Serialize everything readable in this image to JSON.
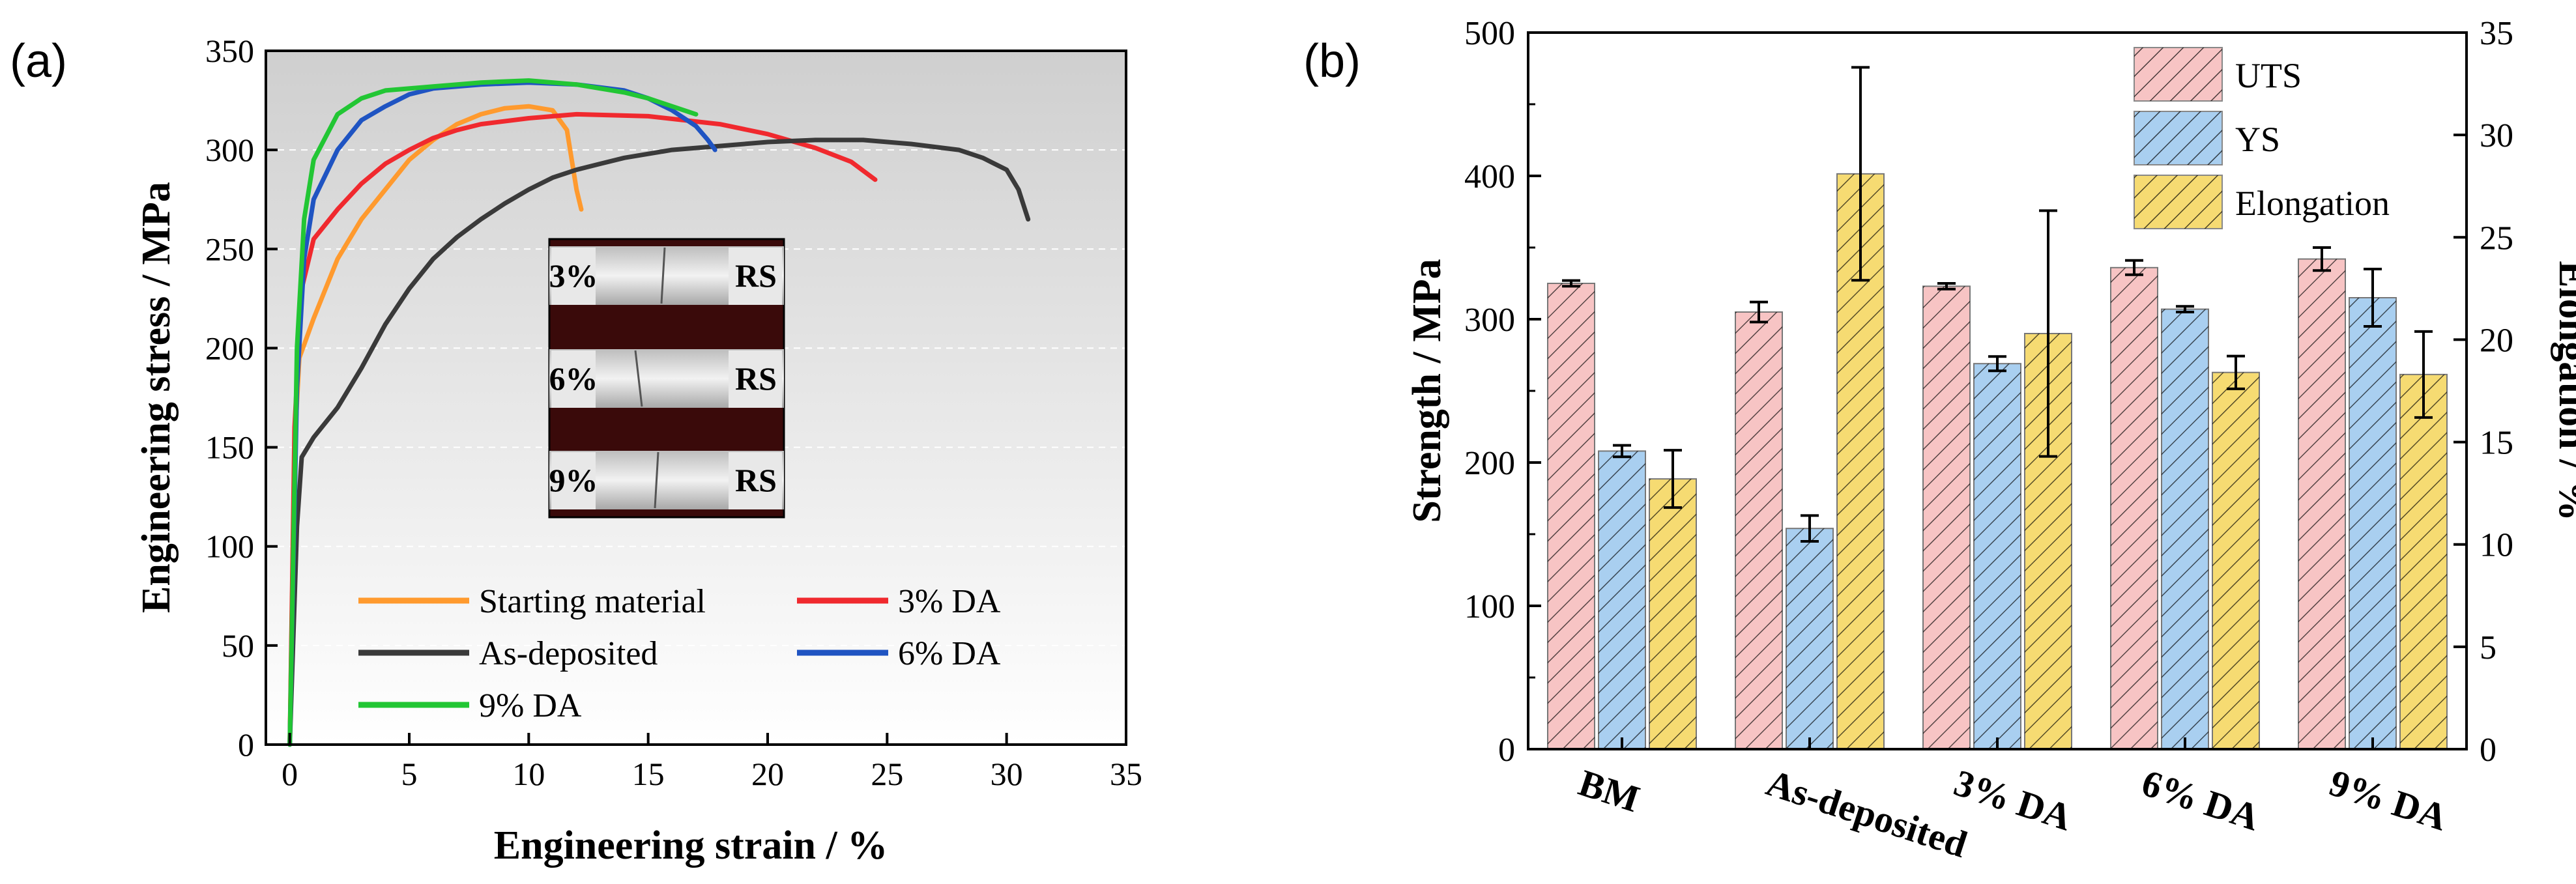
{
  "panel_labels": {
    "a": "(a)",
    "b": "(b)"
  },
  "colors": {
    "starting": "#FF9A2E",
    "da3": "#F0292E",
    "asdep": "#3A3A3A",
    "da6": "#1F54C2",
    "da9": "#22C634",
    "uts_fill": "#F7C4C4",
    "ys_fill": "#A9CFF0",
    "el_fill": "#F6DB72",
    "axis": "#000000"
  },
  "chart_data": [
    {
      "type": "line",
      "title": "",
      "xlabel": "Engineering strain / %",
      "ylabel": "Engineering stress / MPa",
      "xlim": [
        -1,
        35
      ],
      "ylim": [
        0,
        350
      ],
      "xticks": [
        "0",
        "5",
        "10",
        "15",
        "20",
        "25",
        "30",
        "35"
      ],
      "yticks": [
        "0",
        "50",
        "100",
        "150",
        "200",
        "250",
        "300",
        "350"
      ],
      "legend": [
        {
          "label": "Starting material",
          "key": "starting"
        },
        {
          "label": "3% DA",
          "key": "da3"
        },
        {
          "label": "As-deposited",
          "key": "asdep"
        },
        {
          "label": "6% DA",
          "key": "da6"
        },
        {
          "label": "9% DA",
          "key": "da9"
        }
      ],
      "series": [
        {
          "name": "Starting material",
          "key": "starting",
          "points": [
            [
              0,
              0
            ],
            [
              0.2,
              150
            ],
            [
              0.4,
              195
            ],
            [
              1,
              215
            ],
            [
              2,
              245
            ],
            [
              3,
              265
            ],
            [
              4,
              280
            ],
            [
              5,
              295
            ],
            [
              6,
              305
            ],
            [
              7,
              313
            ],
            [
              8,
              318
            ],
            [
              9,
              321
            ],
            [
              10,
              322
            ],
            [
              11,
              320
            ],
            [
              11.6,
              310
            ],
            [
              12,
              280
            ],
            [
              12.2,
              270
            ]
          ]
        },
        {
          "name": "3% DA",
          "key": "da3",
          "points": [
            [
              0,
              0
            ],
            [
              0.2,
              160
            ],
            [
              0.5,
              230
            ],
            [
              1,
              255
            ],
            [
              2,
              270
            ],
            [
              3,
              283
            ],
            [
              4,
              293
            ],
            [
              5,
              300
            ],
            [
              6,
              306
            ],
            [
              7,
              310
            ],
            [
              8,
              313
            ],
            [
              10,
              316
            ],
            [
              12,
              318
            ],
            [
              15,
              317
            ],
            [
              18,
              313
            ],
            [
              20,
              308
            ],
            [
              22,
              301
            ],
            [
              23.5,
              294
            ],
            [
              24.5,
              285
            ]
          ]
        },
        {
          "name": "As-deposited",
          "key": "asdep",
          "points": [
            [
              0,
              0
            ],
            [
              0.3,
              110
            ],
            [
              0.5,
              145
            ],
            [
              1,
              155
            ],
            [
              2,
              170
            ],
            [
              3,
              190
            ],
            [
              4,
              212
            ],
            [
              5,
              230
            ],
            [
              6,
              245
            ],
            [
              7,
              256
            ],
            [
              8,
              265
            ],
            [
              9,
              273
            ],
            [
              10,
              280
            ],
            [
              11,
              286
            ],
            [
              12,
              290
            ],
            [
              13,
              293
            ],
            [
              14,
              296
            ],
            [
              15,
              298
            ],
            [
              16,
              300
            ],
            [
              18,
              302
            ],
            [
              20,
              304
            ],
            [
              22,
              305
            ],
            [
              24,
              305
            ],
            [
              26,
              303
            ],
            [
              28,
              300
            ],
            [
              29,
              296
            ],
            [
              30,
              290
            ],
            [
              30.5,
              280
            ],
            [
              30.9,
              265
            ]
          ]
        },
        {
          "name": "6% DA",
          "key": "da6",
          "points": [
            [
              0,
              0
            ],
            [
              0.3,
              180
            ],
            [
              0.6,
              245
            ],
            [
              1,
              275
            ],
            [
              2,
              300
            ],
            [
              3,
              315
            ],
            [
              4,
              322
            ],
            [
              5,
              328
            ],
            [
              6,
              331
            ],
            [
              8,
              333
            ],
            [
              10,
              334
            ],
            [
              12,
              333
            ],
            [
              14,
              330
            ],
            [
              15,
              326
            ],
            [
              16,
              320
            ],
            [
              17,
              312
            ],
            [
              17.5,
              305
            ],
            [
              17.8,
              300
            ]
          ]
        },
        {
          "name": "9% DA",
          "key": "da9",
          "points": [
            [
              0,
              0
            ],
            [
              0.3,
              200
            ],
            [
              0.6,
              265
            ],
            [
              1,
              295
            ],
            [
              2,
              318
            ],
            [
              3,
              326
            ],
            [
              4,
              330
            ],
            [
              6,
              332
            ],
            [
              8,
              334
            ],
            [
              10,
              335
            ],
            [
              12,
              333
            ],
            [
              14,
              329
            ],
            [
              15,
              326
            ],
            [
              16,
              322
            ],
            [
              17,
              318
            ]
          ]
        }
      ],
      "inset_labels": [
        {
          "pct": "3%",
          "side": "RS"
        },
        {
          "pct": "6%",
          "side": "RS"
        },
        {
          "pct": "9%",
          "side": "RS"
        }
      ]
    },
    {
      "type": "bar",
      "title": "",
      "xlabel": "",
      "ylabel": "Strength / MPa",
      "y2label": "Elongation / %",
      "ylim": [
        0,
        500
      ],
      "y2lim": [
        0,
        35
      ],
      "yticks": [
        "0",
        "100",
        "200",
        "300",
        "400",
        "500"
      ],
      "y2ticks": [
        "0",
        "5",
        "10",
        "15",
        "20",
        "25",
        "30",
        "35"
      ],
      "categories": [
        "BM",
        "As-deposited",
        "3% DA",
        "6% DA",
        "9% DA"
      ],
      "series": [
        {
          "name": "UTS",
          "key": "uts",
          "axis": "left",
          "values": [
            325,
            305,
            323,
            336,
            342
          ],
          "errors": [
            2,
            7,
            2,
            5,
            8
          ]
        },
        {
          "name": "YS",
          "key": "ys",
          "axis": "left",
          "values": [
            208,
            154,
            269,
            307,
            315
          ],
          "errors": [
            4,
            9,
            5,
            2,
            20
          ]
        },
        {
          "name": "Elongation",
          "key": "el",
          "axis": "right",
          "values": [
            13.2,
            28.1,
            20.3,
            18.4,
            18.3
          ],
          "errors": [
            1.4,
            5.2,
            6,
            0.8,
            2.1
          ]
        }
      ],
      "legend": [
        "UTS",
        "YS",
        "Elongation"
      ]
    }
  ]
}
